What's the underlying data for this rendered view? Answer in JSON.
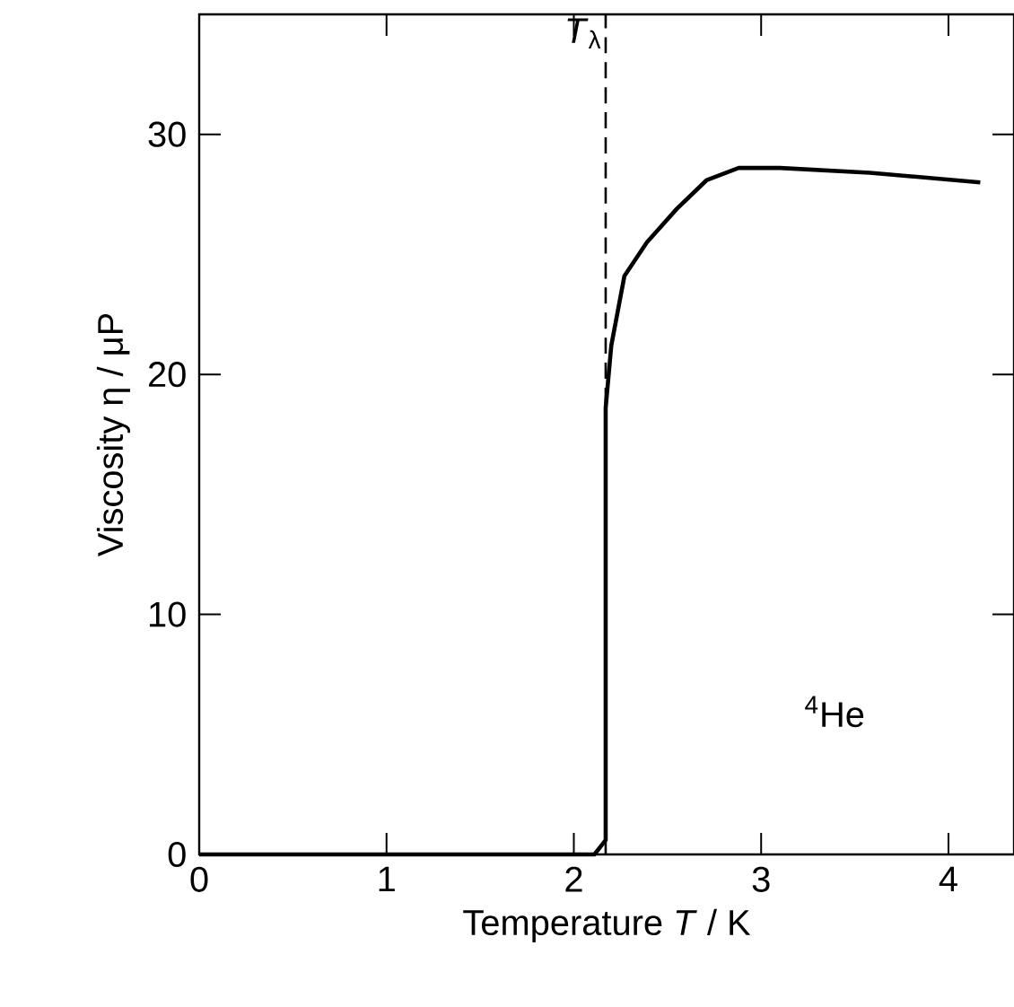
{
  "chart_data": {
    "type": "line",
    "xlabel": "Temperature *T* / K",
    "ylabel": "Viscosity η / μP",
    "x": [
      0,
      2.11,
      2.15,
      2.17,
      2.17,
      2.2,
      2.27,
      2.39,
      2.55,
      2.71,
      2.88,
      3.1,
      3.58,
      4.17
    ],
    "values": [
      0,
      0,
      0.4,
      0.6,
      18.6,
      21.2,
      24.1,
      25.5,
      26.9,
      28.1,
      28.6,
      28.6,
      28.4,
      28.0
    ],
    "color": "#000000",
    "marker": "none",
    "xlim": [
      0,
      4.35
    ],
    "ylim": [
      0,
      35
    ],
    "xticks": [
      0,
      1,
      2,
      3,
      4
    ],
    "yticks": [
      0,
      10,
      20,
      30
    ],
    "ref_lines": [
      {
        "axis": "x",
        "value": 2.17,
        "label": "*T*$_{λ}$",
        "line_style": "dashed",
        "color": "#000000"
      }
    ],
    "annotations": [
      "$^{4}$He"
    ]
  }
}
